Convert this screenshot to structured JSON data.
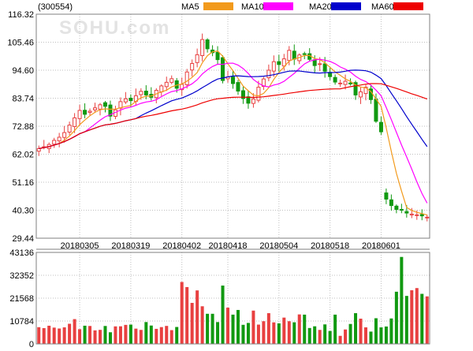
{
  "header": {
    "code_label": "(300554)"
  },
  "legend": [
    {
      "label": "MA5",
      "color": "#f29a1c"
    },
    {
      "label": "MA10",
      "color": "#ff00ff"
    },
    {
      "label": "MA20",
      "color": "#0000cc"
    },
    {
      "label": "MA60",
      "color": "#ee0000"
    }
  ],
  "watermark": "SOHU.com",
  "colors": {
    "up": "#e84040",
    "down": "#119911",
    "grid": "#bfbfbf",
    "frame": "#7f7f7f"
  },
  "chart_data": [
    {
      "type": "candlestick",
      "title": "",
      "price_ticks": [
        "116.32",
        "105.46",
        "94.60",
        "83.74",
        "72.88",
        "62.02",
        "51.16",
        "40.30",
        "29.44"
      ],
      "ylim": [
        29.44,
        116.32
      ],
      "date_ticks": [
        "20180305",
        "20180319",
        "20180402",
        "20180418",
        "20180504",
        "20180518",
        "20180601"
      ],
      "date_tick_day_index": [
        8,
        18,
        28,
        37,
        47,
        57,
        67
      ],
      "num_days": 77,
      "close": [
        64.2,
        64.9,
        65.8,
        67.4,
        68.6,
        70.4,
        73.3,
        76.1,
        79.0,
        77.5,
        78.7,
        80.0,
        81.2,
        80.6,
        76.8,
        79.2,
        82.4,
        83.5,
        82.8,
        84.7,
        86.4,
        85.0,
        84.1,
        86.8,
        88.5,
        89.9,
        91.3,
        87.6,
        89.1,
        93.9,
        97.2,
        100.6,
        106.5,
        102.9,
        101.4,
        98.7,
        90.6,
        92.0,
        89.4,
        86.5,
        83.6,
        81.8,
        83.4,
        88.0,
        91.2,
        94.6,
        97.9,
        96.8,
        99.0,
        102.3,
        98.9,
        100.5,
        100.9,
        98.8,
        96.4,
        97.1,
        94.2,
        92.1,
        90.0,
        89.6,
        90.3,
        89.3,
        85.0,
        86.2,
        88.0,
        83.2,
        74.8,
        70.7,
        44.6,
        42.1,
        40.6,
        40.3,
        39.2,
        38.8,
        38.5,
        38.1,
        37.6
      ],
      "volume": [
        7880,
        7440,
        8570,
        7680,
        7250,
        7800,
        9490,
        11680,
        6940,
        8580,
        8450,
        6380,
        6620,
        8450,
        5490,
        8260,
        8300,
        8970,
        9100,
        7200,
        6600,
        10300,
        8660,
        7100,
        7920,
        8480,
        6490,
        7980,
        29200,
        26800,
        19340,
        25220,
        17740,
        14200,
        14200,
        10300,
        27500,
        17080,
        13800,
        16000,
        9000,
        9900,
        15700,
        9100,
        10700,
        14490,
        10160,
        9700,
        12400,
        10700,
        10200,
        13900,
        13800,
        7500,
        8300,
        6600,
        9200,
        6100,
        13800,
        3800,
        6800,
        9400,
        14490,
        11900,
        7800,
        5800,
        12100,
        7800,
        8200,
        12000,
        24600,
        41000,
        22630,
        25300,
        26320,
        23600,
        22400
      ],
      "volume_ticks": [
        "43136",
        "32352",
        "21568",
        "10784",
        "0"
      ],
      "volume_ylim": [
        0,
        43136
      ],
      "series": [
        {
          "name": "MA5",
          "color": "#f29a1c"
        },
        {
          "name": "MA10",
          "color": "#ff00ff"
        },
        {
          "name": "MA20",
          "color": "#0000cc"
        },
        {
          "name": "MA60",
          "color": "#ee0000"
        }
      ]
    }
  ]
}
